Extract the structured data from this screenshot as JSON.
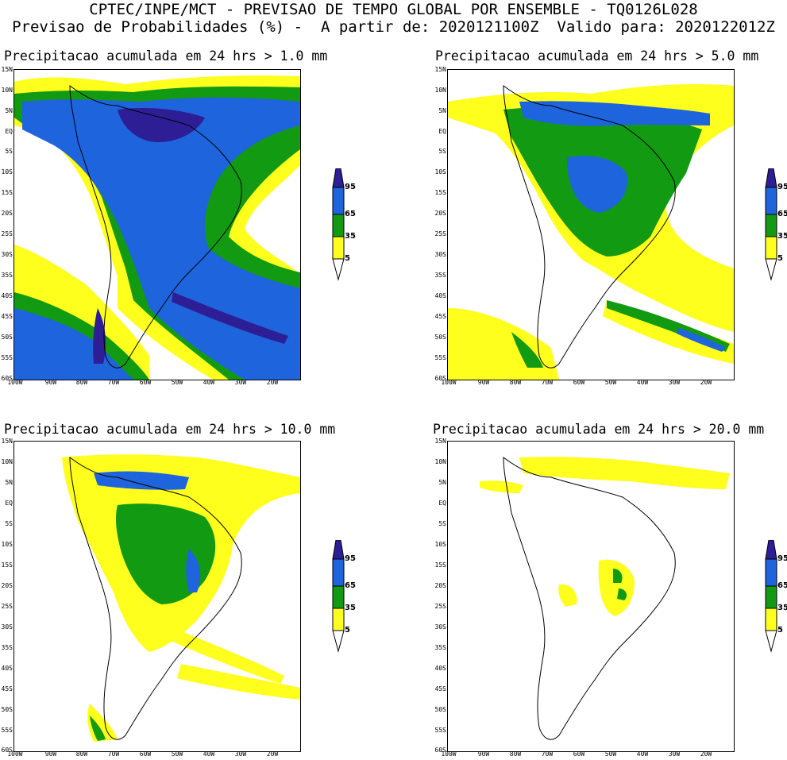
{
  "header": {
    "line1": "CPTEC/INPE/MCT - PREVISAO DE TEMPO GLOBAL POR ENSEMBLE - TQ0126L028",
    "line2": "Previsao de Probabilidades (%) -  A partir de: 2020121100Z  Valido para: 2020122012Z"
  },
  "axes": {
    "lat_labels": [
      "15N",
      "10N",
      "5N",
      "EQ",
      "5S",
      "10S",
      "15S",
      "20S",
      "25S",
      "30S",
      "35S",
      "40S",
      "45S",
      "50S",
      "55S",
      "60S"
    ],
    "lon_labels": [
      "100W",
      "90W",
      "80W",
      "70W",
      "60W",
      "50W",
      "40W",
      "30W",
      "20W"
    ]
  },
  "legend": {
    "levels": [
      "95",
      "65",
      "35",
      "5"
    ],
    "colors": {
      "p5": "#ffff1e",
      "p35": "#139a13",
      "p65": "#1e64dc",
      "p95": "#2d1e96"
    }
  },
  "panels": [
    {
      "title": "Precipitacao acumulada em 24 hrs > 1.0 mm",
      "threshold": "1.0 mm"
    },
    {
      "title": "Precipitacao acumulada em 24 hrs > 5.0 mm",
      "threshold": "5.0 mm"
    },
    {
      "title": "Precipitacao acumulada em 24 hrs > 10.0 mm",
      "threshold": "10.0 mm"
    },
    {
      "title": "Precipitacao acumulada em 24 hrs > 20.0 mm",
      "threshold": "20.0 mm"
    }
  ]
}
